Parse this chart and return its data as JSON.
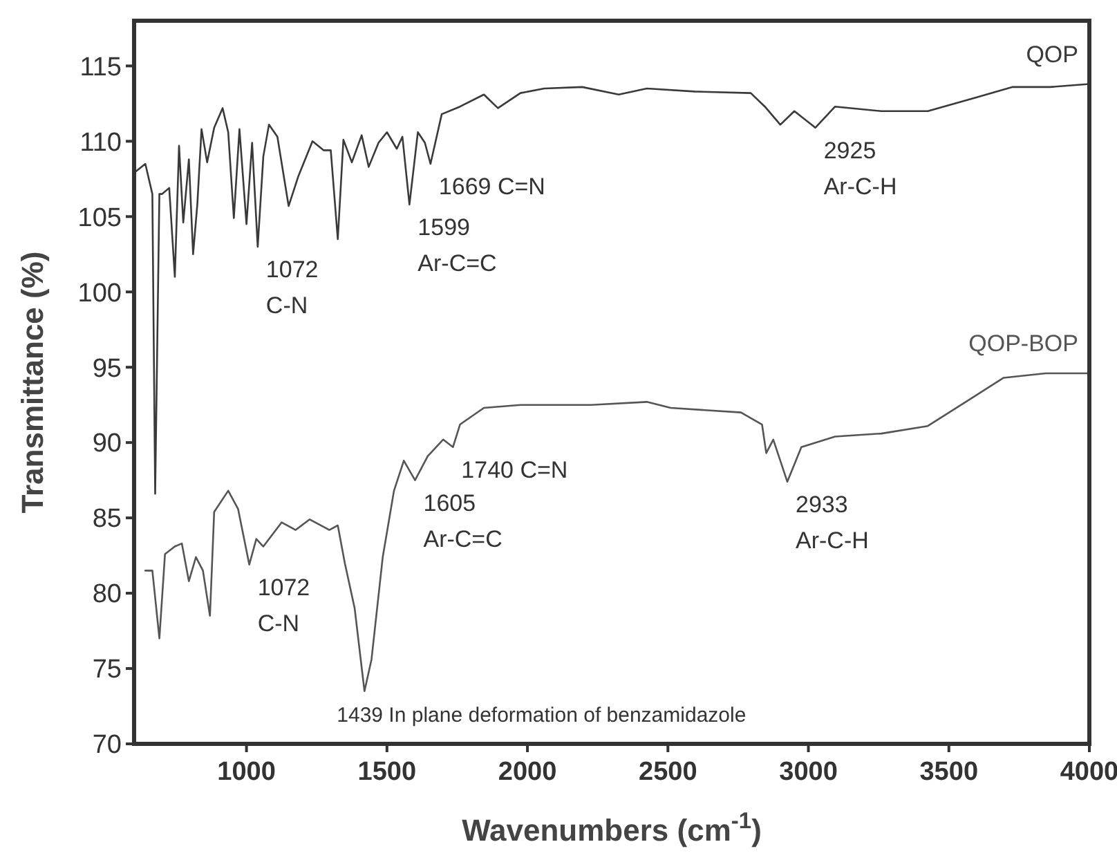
{
  "chart_data": {
    "type": "line",
    "xlabel": "Wavenumbers (cm$^{-1}$)",
    "ylabel": "Transmittance (%)",
    "xlim": [
      600,
      4000
    ],
    "ylim": [
      70,
      118
    ],
    "xticks": [
      1000,
      1500,
      2000,
      2500,
      3000,
      3500,
      4000
    ],
    "yticks": [
      70,
      75,
      80,
      85,
      90,
      95,
      100,
      105,
      110,
      115
    ],
    "grid": false,
    "marker": "none",
    "line_style": "solid",
    "series": [
      {
        "name": "QOP",
        "color": "#3a3a3a",
        "x": [
          600,
          640,
          665,
          675,
          690,
          700,
          725,
          745,
          760,
          775,
          795,
          810,
          825,
          840,
          860,
          885,
          915,
          935,
          955,
          975,
          1000,
          1020,
          1040,
          1060,
          1080,
          1110,
          1150,
          1185,
          1235,
          1275,
          1300,
          1325,
          1345,
          1375,
          1410,
          1435,
          1470,
          1500,
          1535,
          1555,
          1580,
          1610,
          1635,
          1655,
          1695,
          1760,
          1845,
          1895,
          1975,
          2060,
          2195,
          2325,
          2425,
          2595,
          2795,
          2845,
          2900,
          2950,
          3025,
          3095,
          3260,
          3425,
          3595,
          3725,
          3860,
          4000
        ],
        "values": [
          107.9,
          108.5,
          106.5,
          86.6,
          106.5,
          106.5,
          106.9,
          101.0,
          109.7,
          104.6,
          108.8,
          102.5,
          105.8,
          110.8,
          108.6,
          110.9,
          112.2,
          110.6,
          104.9,
          110.8,
          104.5,
          109.9,
          103.0,
          109.0,
          111.1,
          110.3,
          105.7,
          107.7,
          110.0,
          109.4,
          109.4,
          103.5,
          110.1,
          108.6,
          110.4,
          108.3,
          109.9,
          110.6,
          109.5,
          110.3,
          105.8,
          110.6,
          109.9,
          108.5,
          111.8,
          112.3,
          113.1,
          112.2,
          113.2,
          113.5,
          113.6,
          113.1,
          113.5,
          113.3,
          113.2,
          112.3,
          111.1,
          112.0,
          110.9,
          112.3,
          112.0,
          112.0,
          112.9,
          113.6,
          113.6,
          113.8
        ]
      },
      {
        "name": "QOP-BOP",
        "color": "#555555",
        "x": [
          640,
          665,
          690,
          710,
          745,
          770,
          795,
          820,
          845,
          870,
          885,
          935,
          970,
          1010,
          1035,
          1060,
          1125,
          1175,
          1225,
          1295,
          1325,
          1350,
          1385,
          1420,
          1445,
          1485,
          1525,
          1560,
          1600,
          1645,
          1700,
          1735,
          1760,
          1845,
          1975,
          2225,
          2425,
          2510,
          2760,
          2835,
          2850,
          2875,
          2925,
          2975,
          3095,
          3260,
          3425,
          3560,
          3695,
          3845,
          4000
        ],
        "values": [
          81.5,
          81.5,
          77.0,
          82.6,
          83.1,
          83.3,
          80.8,
          82.4,
          81.5,
          78.5,
          85.4,
          86.8,
          85.6,
          81.9,
          83.6,
          83.1,
          84.7,
          84.2,
          84.9,
          84.2,
          84.5,
          82.0,
          79.0,
          73.5,
          75.6,
          82.4,
          86.8,
          88.8,
          87.5,
          89.1,
          90.2,
          89.7,
          91.2,
          92.3,
          92.5,
          92.5,
          92.7,
          92.3,
          92.0,
          91.2,
          89.3,
          90.2,
          87.4,
          89.7,
          90.4,
          90.6,
          91.1,
          92.7,
          94.3,
          94.6,
          94.6
        ]
      }
    ],
    "annotations": [
      {
        "text": "1072",
        "x": 1040,
        "y": 103.0
      },
      {
        "text": "C-N",
        "x": 1040,
        "y": 103.0
      },
      {
        "text": "1599",
        "x": 1580,
        "y": 105.8
      },
      {
        "text": "Ar-C=C",
        "x": 1580,
        "y": 105.8
      },
      {
        "text": "1669 C=N",
        "x": 1655,
        "y": 108.5
      },
      {
        "text": "2925",
        "x": 3025,
        "y": 110.9
      },
      {
        "text": "Ar-C-H",
        "x": 3025,
        "y": 110.9
      },
      {
        "text": "1605",
        "x": 1600,
        "y": 87.5
      },
      {
        "text": "Ar-C=C",
        "x": 1600,
        "y": 87.5
      },
      {
        "text": "1740 C=N",
        "x": 1735,
        "y": 89.7
      },
      {
        "text": "1072",
        "x": 1010,
        "y": 81.9
      },
      {
        "text": "C-N",
        "x": 1010,
        "y": 81.9
      },
      {
        "text": "2933",
        "x": 2925,
        "y": 87.4
      },
      {
        "text": "Ar-C-H",
        "x": 2925,
        "y": 87.4
      },
      {
        "text": "1439 In plane deformation of benzamidazole",
        "x": 1420,
        "y": 73.5
      }
    ]
  }
}
